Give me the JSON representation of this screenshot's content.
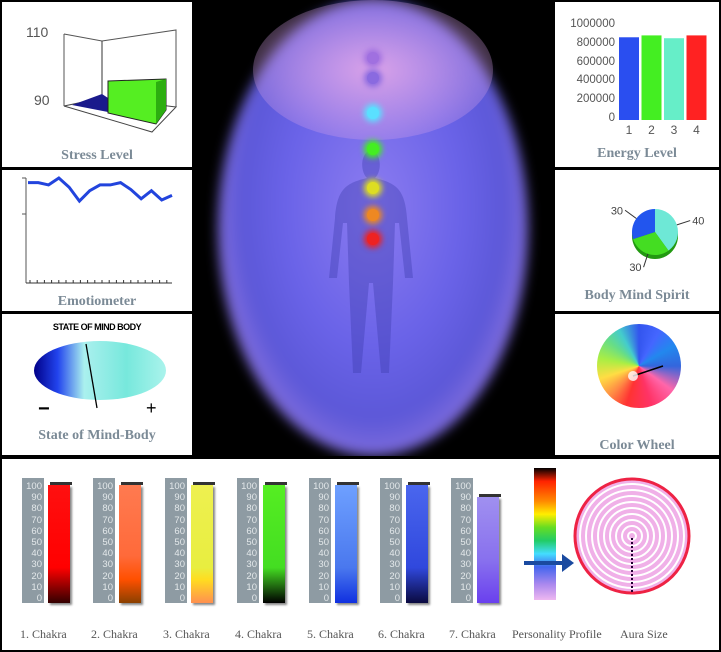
{
  "stress": {
    "caption": "Stress Level",
    "ticks": [
      "110",
      "90"
    ],
    "colors": [
      "#1a1a8c",
      "#55ee22"
    ]
  },
  "emotiometer": {
    "caption": "Emotiometer",
    "values": [
      92,
      92,
      88,
      100,
      84,
      60,
      78,
      88,
      88,
      92,
      80,
      64,
      78,
      62,
      70
    ],
    "color": "#2244dd"
  },
  "state": {
    "caption": "State of Mind-Body",
    "title": "STATE OF MIND BODY",
    "minus": "−",
    "plus": "+"
  },
  "chart_data": [
    {
      "type": "bar",
      "title": "Energy Level",
      "categories": [
        "1",
        "2",
        "3",
        "4"
      ],
      "values": [
        880000,
        900000,
        870000,
        900000
      ],
      "colors": [
        "#2a4ef0",
        "#44ee22",
        "#66eec8",
        "#ff2222"
      ],
      "ylim": [
        0,
        1000000
      ],
      "yticks": [
        "1000000",
        "800000",
        "600000",
        "400000",
        "200000",
        "0"
      ]
    },
    {
      "type": "pie",
      "title": "Body Mind Spirit",
      "values": [
        40,
        30,
        30
      ],
      "labels": [
        "40",
        "30",
        "30"
      ],
      "colors": [
        "#6ee8d6",
        "#44dd22",
        "#2255ee"
      ]
    }
  ],
  "colorwheel": {
    "caption": "Color Wheel"
  },
  "chakras": {
    "scale": [
      "100",
      "90",
      "80",
      "70",
      "60",
      "50",
      "40",
      "30",
      "20",
      "10",
      "0"
    ],
    "items": [
      {
        "label": "1. Chakra",
        "value": 98,
        "grad": "linear-gradient(#ff1010 0%,#ff0000 70%,#300 100%)"
      },
      {
        "label": "2. Chakra",
        "value": 98,
        "grad": "linear-gradient(#ff7a50 0%,#ff6a3a 60%,#ff5000 80%,#8a4000 100%)"
      },
      {
        "label": "3. Chakra",
        "value": 98,
        "grad": "linear-gradient(#eef050 0%,#e8ee40 70%,#ffdd20 80%,#ff9050 100%)"
      },
      {
        "label": "4. Chakra",
        "value": 98,
        "grad": "linear-gradient(#55ee22 0%,#44dd22 70%,#000 100%)"
      },
      {
        "label": "5. Chakra",
        "value": 98,
        "grad": "linear-gradient(#6ea0ff 0%,#4a78ee 70%,#1030e0 100%)"
      },
      {
        "label": "6. Chakra",
        "value": 98,
        "grad": "linear-gradient(#4a66ee 0%,#3048dd 70%,#0a0a40 100%)"
      },
      {
        "label": "7. Chakra",
        "value": 88,
        "grad": "linear-gradient(#a090f0 0%,#8870ee 60%,#6a40ee 100%)"
      }
    ],
    "personality": "Personality Profile",
    "aura": "Aura Size"
  }
}
